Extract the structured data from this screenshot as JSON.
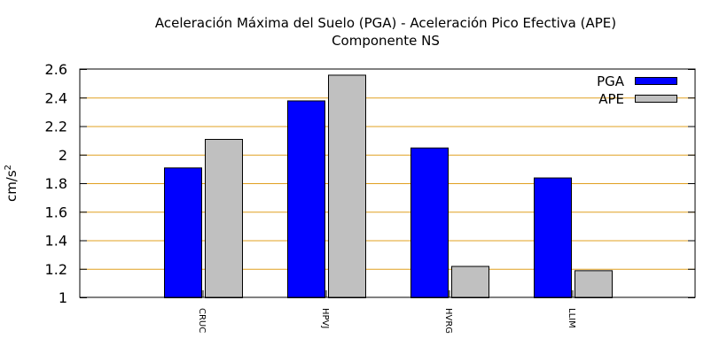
{
  "chart_data": {
    "type": "bar",
    "title_line1": "Aceleración Máxima del Suelo (PGA) -  Aceleración Pico Efectiva (APE)",
    "title_line2": "Componente NS",
    "ylabel": "cm/s",
    "ylabel_superscript": "2",
    "xlabel": "",
    "ylim": [
      1,
      2.6
    ],
    "yticks": [
      1,
      1.2,
      1.4,
      1.6,
      1.8,
      2,
      2.2,
      2.4,
      2.6
    ],
    "ytick_labels": [
      "1",
      "1.2",
      "1.4",
      "1.6",
      "1.8",
      "2",
      "2.2",
      "2.4",
      "2.6"
    ],
    "grid": "horizontal",
    "legend_position": "top-right",
    "categories": [
      "CRUC",
      "HPVJ",
      "HVRG",
      "LLIM"
    ],
    "series": [
      {
        "name": "PGA",
        "color": "#0000ff",
        "values": [
          1.91,
          2.38,
          2.05,
          1.84
        ]
      },
      {
        "name": "APE",
        "color": "#c0c0c0",
        "values": [
          2.11,
          2.56,
          1.22,
          1.19
        ]
      }
    ],
    "grid_color": "#e0a020"
  }
}
